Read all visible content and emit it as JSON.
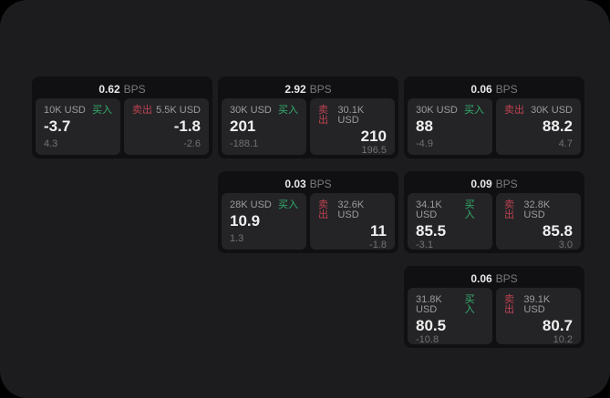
{
  "window": {
    "background": "#000000",
    "panel_background": "#1c1c1e"
  },
  "labels": {
    "buy": "买入",
    "sell": "卖出",
    "bps_unit": "BPS"
  },
  "colors": {
    "buy_green": "#33b06c",
    "sell_red": "#bf4250",
    "card_bg": "#101012",
    "tile_bg": "#242427",
    "value_text": "#efefef",
    "muted_text": "#9b9b9e",
    "faint_text": "#727275"
  },
  "cards": [
    {
      "bps": "0.62",
      "buy": {
        "amount": "10K USD",
        "value": "-3.7",
        "delta": "4.3"
      },
      "sell": {
        "amount": "5.5K USD",
        "value": "-1.8",
        "delta": "-2.6"
      }
    },
    {
      "bps": "2.92",
      "buy": {
        "amount": "30K USD",
        "value": "201",
        "delta": "-188.1"
      },
      "sell": {
        "amount": "30.1K USD",
        "value": "210",
        "delta": "196.5"
      }
    },
    {
      "bps": "0.06",
      "buy": {
        "amount": "30K USD",
        "value": "88",
        "delta": "-4.9"
      },
      "sell": {
        "amount": "30K USD",
        "value": "88.2",
        "delta": "4.7"
      }
    },
    {
      "bps": "0.03",
      "buy": {
        "amount": "28K USD",
        "value": "10.9",
        "delta": "1.3"
      },
      "sell": {
        "amount": "32.6K USD",
        "value": "11",
        "delta": "-1.8"
      }
    },
    {
      "bps": "0.09",
      "buy": {
        "amount": "34.1K USD",
        "value": "85.5",
        "delta": "-3.1"
      },
      "sell": {
        "amount": "32.8K USD",
        "value": "85.8",
        "delta": "3.0"
      }
    },
    {
      "bps": "0.06",
      "buy": {
        "amount": "31.8K USD",
        "value": "80.5",
        "delta": "-10.8"
      },
      "sell": {
        "amount": "39.1K USD",
        "value": "80.7",
        "delta": "10.2"
      }
    }
  ]
}
